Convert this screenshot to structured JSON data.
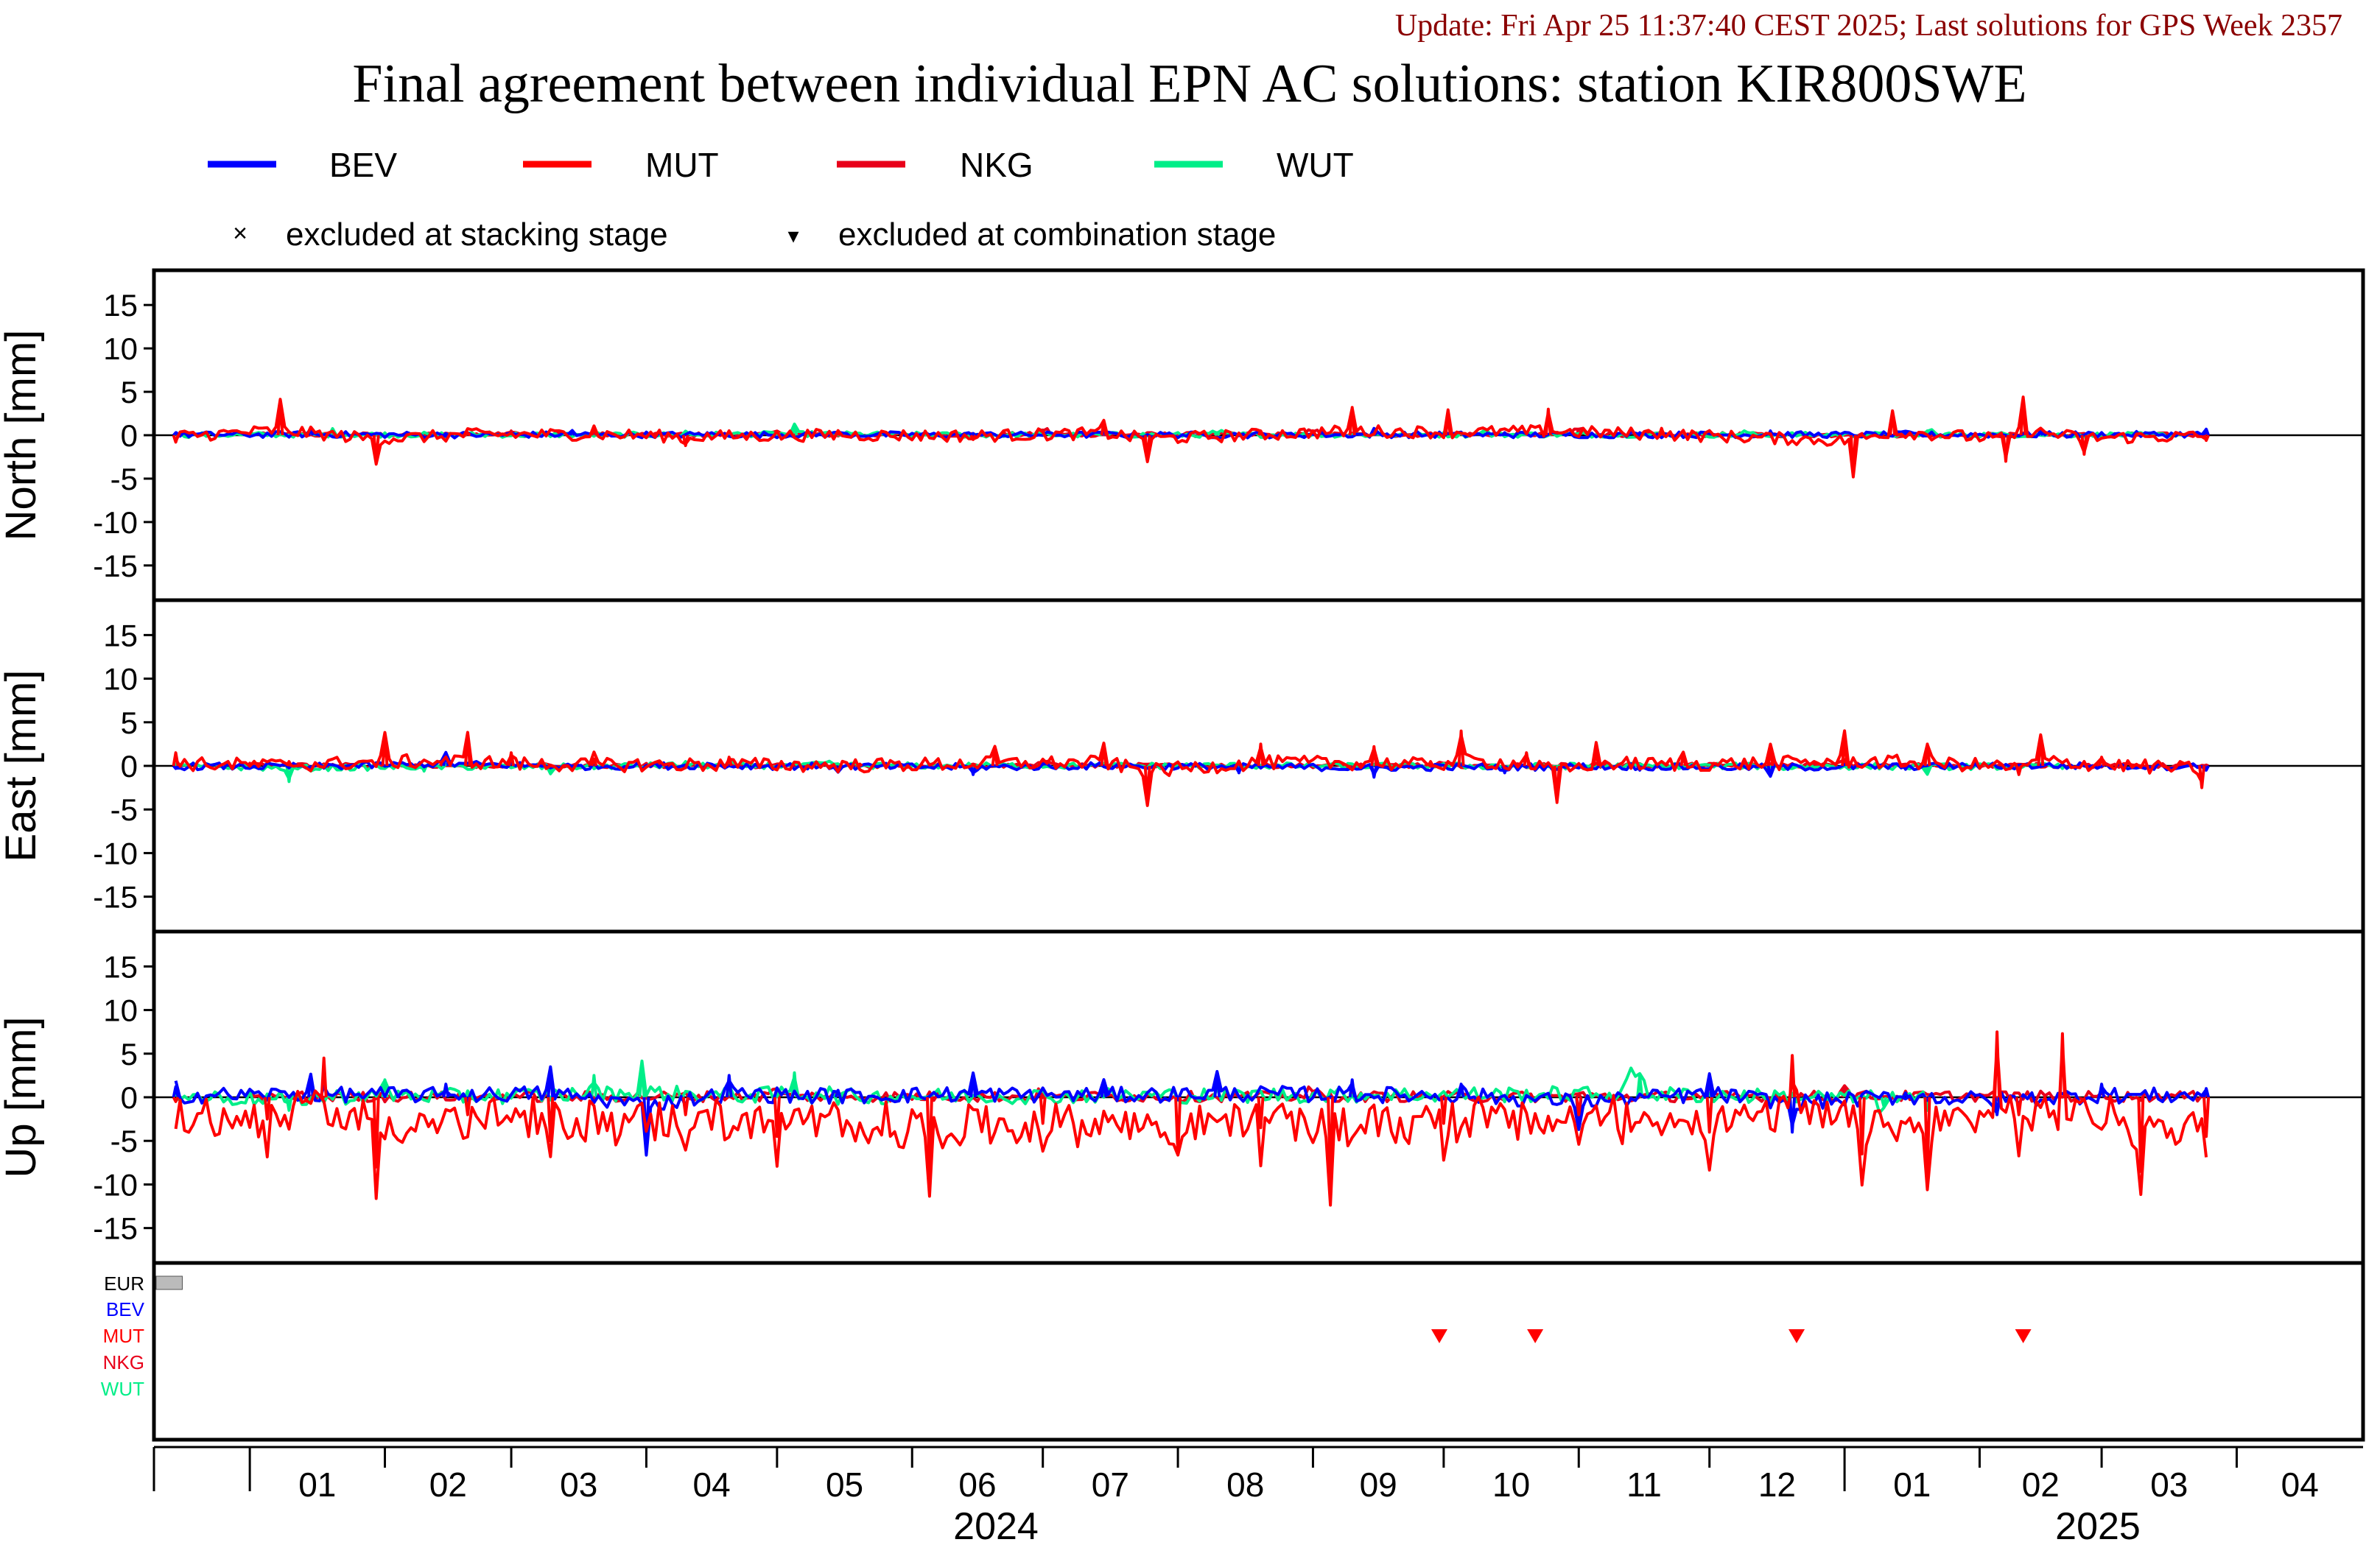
{
  "update_text": "Update: Fri Apr 25 11:37:40 CEST 2025; Last solutions for GPS Week 2357",
  "title": "Final agreement between individual EPN AC solutions: station KIR800SWE",
  "colors": {
    "BEV": "#0000ff",
    "MUT": "#ff0000",
    "NKG": "#e8001a",
    "WUT": "#00ee88",
    "update": "#8b0000",
    "axis": "#000000"
  },
  "legend": {
    "series": [
      {
        "name": "BEV",
        "color": "#0000ff"
      },
      {
        "name": "MUT",
        "color": "#ff0000"
      },
      {
        "name": "NKG",
        "color": "#e8001a"
      },
      {
        "name": "WUT",
        "color": "#00ee88"
      }
    ],
    "marker_stacking": "excluded at stacking stage",
    "marker_combination": "excluded at combination stage",
    "marker_stacking_symbol": "×",
    "marker_combination_symbol": "▾"
  },
  "chart_data": {
    "type": "line",
    "x_range": [
      "2023-12-10",
      "2025-04-30"
    ],
    "ylim": [
      -19,
      19
    ],
    "yticks": [
      15,
      10,
      5,
      0,
      -5,
      -10,
      -15
    ],
    "panels": [
      {
        "ylabel": "North [mm]"
      },
      {
        "ylabel": "East [mm]"
      },
      {
        "ylabel": "Up [mm]"
      }
    ],
    "series": [
      {
        "name": "BEV",
        "color": "#0000ff"
      },
      {
        "name": "MUT",
        "color": "#ff0000"
      },
      {
        "name": "NKG",
        "color": "#e8001a"
      },
      {
        "name": "WUT",
        "color": "#00ee88"
      }
    ],
    "north": {
      "BEV": [
        [
          "2023-12-15",
          0.3
        ],
        [
          "2024-01-15",
          0.6
        ],
        [
          "2024-02-15",
          0.2
        ],
        [
          "2024-03-15",
          0.5
        ],
        [
          "2024-04-15",
          0.3
        ],
        [
          "2024-05-15",
          0.5
        ],
        [
          "2024-06-15",
          0.2
        ],
        [
          "2024-07-15",
          0.4
        ],
        [
          "2024-08-15",
          0.2
        ],
        [
          "2024-09-15",
          0.5
        ],
        [
          "2024-10-15",
          0.3
        ],
        [
          "2024-11-15",
          0.3
        ],
        [
          "2024-12-15",
          0.5
        ],
        [
          "2025-01-15",
          0.3
        ],
        [
          "2025-02-15",
          0.4
        ],
        [
          "2025-03-25",
          0.7
        ]
      ],
      "MUT": [
        [
          "2023-12-15",
          -0.8
        ],
        [
          "2024-01-08",
          3.8
        ],
        [
          "2024-01-30",
          -3.0
        ],
        [
          "2024-02-20",
          0.3
        ],
        [
          "2024-03-20",
          0.8
        ],
        [
          "2024-04-10",
          -1.2
        ],
        [
          "2024-05-15",
          0.2
        ],
        [
          "2024-06-15",
          -0.5
        ],
        [
          "2024-07-15",
          1.5
        ],
        [
          "2024-07-25",
          -2.8
        ],
        [
          "2024-08-20",
          0.5
        ],
        [
          "2024-09-10",
          3.2
        ],
        [
          "2024-10-02",
          2.4
        ],
        [
          "2024-10-25",
          3.0
        ],
        [
          "2024-11-20",
          0.8
        ],
        [
          "2025-01-03",
          -4.5
        ],
        [
          "2025-01-12",
          2.8
        ],
        [
          "2025-02-07",
          -3.0
        ],
        [
          "2025-02-11",
          3.9
        ],
        [
          "2025-02-25",
          -2.2
        ],
        [
          "2025-03-25",
          -0.6
        ]
      ],
      "NKG": [
        [
          "2024-01-01",
          0.2
        ],
        [
          "2024-03-01",
          0.5
        ],
        [
          "2024-05-01",
          0.3
        ],
        [
          "2024-07-01",
          0.6
        ],
        [
          "2024-09-01",
          0.4
        ],
        [
          "2024-11-01",
          0.7
        ],
        [
          "2025-01-01",
          0.2
        ],
        [
          "2025-03-25",
          0.2
        ]
      ],
      "WUT": [
        [
          "2023-12-15",
          0.2
        ],
        [
          "2024-01-20",
          0.5
        ],
        [
          "2024-02-25",
          0.3
        ],
        [
          "2024-04-10",
          0.4
        ],
        [
          "2024-05-05",
          1.0
        ],
        [
          "2024-06-10",
          0.2
        ],
        [
          "2024-08-10",
          0.3
        ],
        [
          "2024-10-10",
          0.4
        ],
        [
          "2024-12-10",
          0.3
        ],
        [
          "2025-01-20",
          0.5
        ],
        [
          "2025-03-20",
          0.1
        ]
      ]
    },
    "east": {
      "BEV": [
        [
          "2023-12-15",
          -0.3
        ],
        [
          "2024-01-15",
          -0.5
        ],
        [
          "2024-02-15",
          1.5
        ],
        [
          "2024-03-15",
          -0.3
        ],
        [
          "2024-04-15",
          0.2
        ],
        [
          "2024-05-15",
          -0.4
        ],
        [
          "2024-06-15",
          -1.0
        ],
        [
          "2024-07-15",
          0.0
        ],
        [
          "2024-08-15",
          -0.8
        ],
        [
          "2024-09-15",
          -1.3
        ],
        [
          "2024-10-15",
          -0.8
        ],
        [
          "2024-11-15",
          -0.5
        ],
        [
          "2024-12-15",
          -1.2
        ],
        [
          "2025-01-15",
          -0.4
        ],
        [
          "2025-02-15",
          0.1
        ],
        [
          "2025-03-25",
          -0.5
        ]
      ],
      "MUT": [
        [
          "2023-12-15",
          1.5
        ],
        [
          "2024-01-10",
          0.5
        ],
        [
          "2024-02-01",
          3.2
        ],
        [
          "2024-02-20",
          3.5
        ],
        [
          "2024-03-01",
          1.5
        ],
        [
          "2024-03-20",
          0.8
        ],
        [
          "2024-04-20",
          1.0
        ],
        [
          "2024-05-20",
          0.2
        ],
        [
          "2024-06-20",
          2.0
        ],
        [
          "2024-07-15",
          2.5
        ],
        [
          "2024-07-25",
          -4.0
        ],
        [
          "2024-08-20",
          2.5
        ],
        [
          "2024-09-15",
          2.2
        ],
        [
          "2024-09-28",
          0.5
        ],
        [
          "2024-10-05",
          4.0
        ],
        [
          "2024-10-20",
          1.5
        ],
        [
          "2024-10-27",
          -4.2
        ],
        [
          "2024-11-05",
          2.0
        ],
        [
          "2024-11-25",
          1.2
        ],
        [
          "2024-12-15",
          2.0
        ],
        [
          "2025-01-01",
          3.5
        ],
        [
          "2025-01-20",
          2.5
        ],
        [
          "2025-02-10",
          -1.0
        ],
        [
          "2025-02-15",
          3.5
        ],
        [
          "2025-03-01",
          1.0
        ],
        [
          "2025-03-24",
          -2.5
        ]
      ],
      "NKG": [
        [
          "2024-01-01",
          0.3
        ],
        [
          "2024-04-01",
          0.1
        ],
        [
          "2024-07-01",
          0.4
        ],
        [
          "2024-10-01",
          0.2
        ],
        [
          "2025-01-01",
          0.5
        ],
        [
          "2025-03-25",
          0.1
        ]
      ],
      "WUT": [
        [
          "2023-12-15",
          0.1
        ],
        [
          "2024-01-10",
          -1.8
        ],
        [
          "2024-02-10",
          -0.6
        ],
        [
          "2024-03-10",
          -0.8
        ],
        [
          "2024-04-10",
          0.5
        ],
        [
          "2024-05-10",
          0.2
        ],
        [
          "2024-12-20",
          -0.2
        ],
        [
          "2025-01-20",
          -0.7
        ],
        [
          "2025-02-20",
          -0.3
        ]
      ]
    },
    "up": {
      "BEV": [
        [
          "2023-12-15",
          1.2
        ],
        [
          "2024-01-15",
          2.5
        ],
        [
          "2024-02-15",
          1.5
        ],
        [
          "2024-03-10",
          3.0
        ],
        [
          "2024-04-01",
          -5.8
        ],
        [
          "2024-04-20",
          2.5
        ],
        [
          "2024-05-15",
          0.8
        ],
        [
          "2024-06-15",
          2.5
        ],
        [
          "2024-07-15",
          1.5
        ],
        [
          "2024-08-10",
          2.8
        ],
        [
          "2024-09-10",
          2.0
        ],
        [
          "2024-10-05",
          1.5
        ],
        [
          "2024-11-01",
          -3.5
        ],
        [
          "2024-12-01",
          2.5
        ],
        [
          "2024-12-20",
          -4.0
        ],
        [
          "2025-01-15",
          0.5
        ],
        [
          "2025-02-05",
          -2.0
        ],
        [
          "2025-03-01",
          1.5
        ],
        [
          "2025-03-25",
          1.0
        ]
      ],
      "MUT": [
        [
          "2023-12-15",
          -0.5
        ],
        [
          "2024-01-05",
          -2.5
        ],
        [
          "2024-01-18",
          4.5
        ],
        [
          "2024-01-30",
          -8.0
        ],
        [
          "2024-02-20",
          -2.0
        ],
        [
          "2024-03-10",
          -5.0
        ],
        [
          "2024-04-10",
          -2.0
        ],
        [
          "2024-05-01",
          -4.5
        ],
        [
          "2024-06-05",
          -8.5
        ],
        [
          "2024-07-01",
          -3.0
        ],
        [
          "2024-08-01",
          -6.5
        ],
        [
          "2024-08-20",
          -3.5
        ],
        [
          "2024-09-05",
          -9.5
        ],
        [
          "2024-10-01",
          -3.0
        ],
        [
          "2024-11-01",
          -2.0
        ],
        [
          "2024-12-01",
          -4.0
        ],
        [
          "2024-12-20",
          4.8
        ],
        [
          "2025-01-05",
          -6.5
        ],
        [
          "2025-01-20",
          -8.5
        ],
        [
          "2025-02-05",
          7.5
        ],
        [
          "2025-02-10",
          -2.0
        ],
        [
          "2025-02-20",
          7.3
        ],
        [
          "2025-03-10",
          -8.5
        ],
        [
          "2025-03-25",
          -4.5
        ]
      ],
      "NKG": [
        [
          "2024-01-01",
          0.5
        ],
        [
          "2024-03-01",
          0.3
        ],
        [
          "2024-05-01",
          0.8
        ],
        [
          "2024-07-01",
          0.4
        ],
        [
          "2024-09-01",
          0.6
        ],
        [
          "2024-11-01",
          0.3
        ],
        [
          "2025-01-01",
          1.0
        ],
        [
          "2025-03-25",
          0.5
        ]
      ],
      "WUT": [
        [
          "2023-12-15",
          0.5
        ],
        [
          "2024-01-10",
          -1.5
        ],
        [
          "2024-02-01",
          2.0
        ],
        [
          "2024-02-20",
          0.5
        ],
        [
          "2024-03-20",
          2.5
        ],
        [
          "2024-03-31",
          3.8
        ],
        [
          "2024-04-20",
          1.0
        ],
        [
          "2024-05-05",
          2.8
        ],
        [
          "2024-05-10",
          0.5
        ],
        [
          "2024-11-15",
          2.5
        ],
        [
          "2025-01-10",
          -1.0
        ],
        [
          "2025-01-20",
          -1.5
        ]
      ]
    },
    "exclusion_panel": {
      "labels": [
        "EUR",
        "BEV",
        "MUT",
        "NKG",
        "WUT"
      ],
      "label_colors": [
        "#000000",
        "#0000ff",
        "#ff0000",
        "#e8001a",
        "#00ee88"
      ],
      "combination_excluded": [
        {
          "ac": "MUT",
          "date": "2024-09-30"
        },
        {
          "ac": "MUT",
          "date": "2024-10-22"
        },
        {
          "ac": "MUT",
          "date": "2024-12-21"
        },
        {
          "ac": "MUT",
          "date": "2025-02-11"
        }
      ],
      "eur_marker_range": [
        "2023-12-10",
        "2023-12-16"
      ]
    },
    "month_ticks": [
      "01",
      "02",
      "03",
      "04",
      "05",
      "06",
      "07",
      "08",
      "09",
      "10",
      "11",
      "12",
      "01",
      "02",
      "03",
      "04"
    ],
    "year_labels": [
      "2024",
      "2025"
    ]
  }
}
